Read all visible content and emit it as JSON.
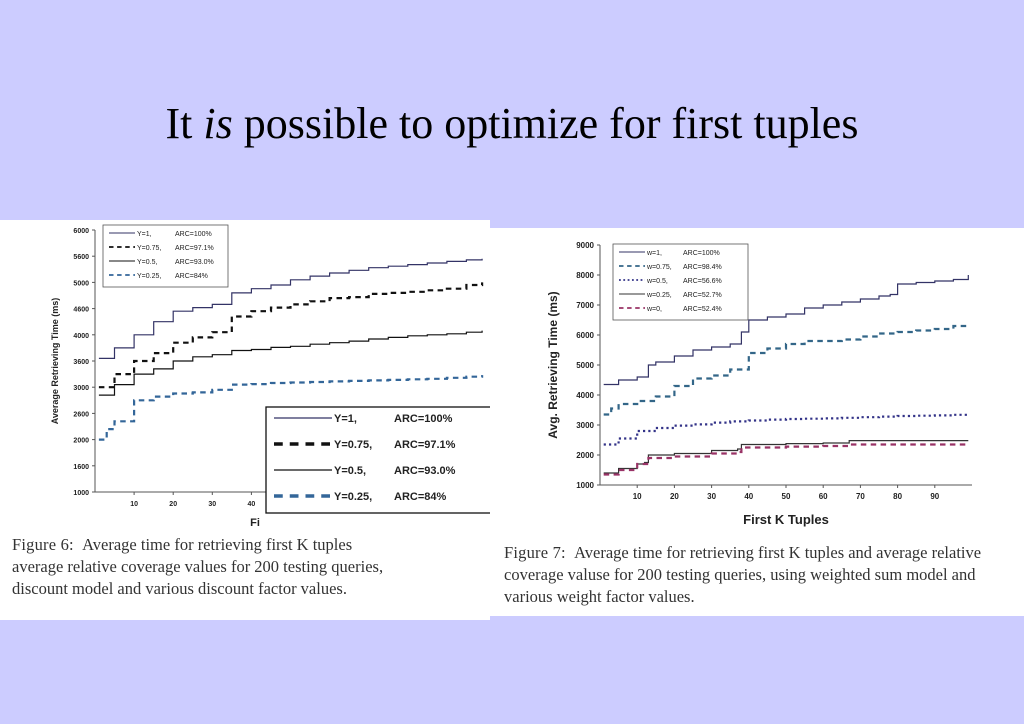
{
  "slide": {
    "title_pre": "It",
    "title_em": "is",
    "title_post": "possible to optimize for first tuples"
  },
  "chart_data": [
    {
      "type": "line",
      "ylabel": "Average Retrieving Time (ms)",
      "xlabel": "Fi",
      "xlim": [
        0,
        100
      ],
      "ylim": [
        1000,
        6000
      ],
      "x_ticks": [
        "10",
        "20",
        "30",
        "40"
      ],
      "y_ticks": [
        "1000",
        "1600",
        "2000",
        "2600",
        "3000",
        "3600",
        "4000",
        "4600",
        "5000",
        "5600",
        "6000"
      ],
      "series": [
        {
          "name": "Y=1,",
          "arc": "ARC=100%",
          "color": "#333366",
          "dash": "solid",
          "x": [
            1,
            5,
            10,
            15,
            20,
            25,
            30,
            35,
            40,
            45,
            50,
            55,
            60,
            65,
            70,
            75,
            80,
            85,
            90,
            95,
            99
          ],
          "y": [
            3550,
            3750,
            4000,
            4250,
            4450,
            4520,
            4580,
            4800,
            4880,
            4950,
            5050,
            5120,
            5180,
            5230,
            5280,
            5310,
            5340,
            5370,
            5400,
            5430,
            5450
          ]
        },
        {
          "name": "Y=0.75,",
          "arc": "ARC=97.1%",
          "color": "#111111",
          "dash": "dashed",
          "x": [
            1,
            5,
            10,
            15,
            20,
            25,
            30,
            35,
            40,
            45,
            50,
            55,
            60,
            65,
            70,
            75,
            80,
            85,
            90,
            95,
            99
          ],
          "y": [
            3000,
            3250,
            3500,
            3650,
            3850,
            3950,
            4050,
            4350,
            4450,
            4520,
            4580,
            4640,
            4700,
            4720,
            4780,
            4800,
            4820,
            4850,
            4880,
            4950,
            5000
          ]
        },
        {
          "name": "Y=0.5,",
          "arc": "ARC=93.0%",
          "color": "#111111",
          "dash": "solid",
          "x": [
            1,
            5,
            10,
            15,
            20,
            25,
            30,
            35,
            40,
            45,
            50,
            55,
            60,
            65,
            70,
            75,
            80,
            85,
            90,
            95,
            99
          ],
          "y": [
            2850,
            3050,
            3250,
            3350,
            3500,
            3580,
            3620,
            3700,
            3720,
            3760,
            3780,
            3820,
            3850,
            3880,
            3920,
            3950,
            3980,
            4000,
            4020,
            4050,
            4080
          ]
        },
        {
          "name": "Y=0.25,",
          "arc": "ARC=84%",
          "color": "#336699",
          "dash": "dashed",
          "x": [
            1,
            3,
            5,
            10,
            15,
            20,
            25,
            30,
            35,
            40,
            45,
            50,
            55,
            60,
            65,
            70,
            75,
            80,
            85,
            90,
            95,
            99
          ],
          "y": [
            2000,
            2200,
            2350,
            2750,
            2820,
            2880,
            2900,
            2950,
            3050,
            3060,
            3080,
            3090,
            3100,
            3110,
            3120,
            3130,
            3140,
            3150,
            3160,
            3180,
            3200,
            3230
          ]
        }
      ],
      "inset_legend": [
        {
          "name": "Y=1,",
          "arc": "ARC=100%"
        },
        {
          "name": "Y=0.75,",
          "arc": "ARC=97.1%"
        },
        {
          "name": "Y=0.5,",
          "arc": "ARC=93.0%"
        },
        {
          "name": "Y=0.25,",
          "arc": "ARC=84%"
        }
      ],
      "caption": {
        "label": "Figure 6:",
        "text": "Average time for retrieving first K tuples",
        "line2": "average relative coverage values for 200 testing queries,",
        "line3": "discount model and various discount factor values."
      }
    },
    {
      "type": "line",
      "ylabel": "Avg. Retrieving Time (ms)",
      "xlabel": "First K Tuples",
      "xlim": [
        0,
        100
      ],
      "ylim": [
        1000,
        9000
      ],
      "x_ticks": [
        "10",
        "20",
        "30",
        "40",
        "50",
        "60",
        "70",
        "80",
        "90"
      ],
      "y_ticks": [
        "1000",
        "2000",
        "3000",
        "4000",
        "5000",
        "6000",
        "7000",
        "8000",
        "9000"
      ],
      "series": [
        {
          "name": "w=1,",
          "arc": "ARC=100%",
          "color": "#333366",
          "dash": "solid",
          "x": [
            1,
            5,
            10,
            13,
            15,
            20,
            25,
            30,
            35,
            38,
            40,
            45,
            50,
            55,
            60,
            65,
            70,
            75,
            78,
            80,
            85,
            90,
            95,
            99
          ],
          "y": [
            4350,
            4500,
            4600,
            5000,
            5100,
            5300,
            5500,
            5600,
            5700,
            6100,
            6500,
            6600,
            6700,
            6900,
            7000,
            7100,
            7200,
            7300,
            7350,
            7700,
            7750,
            7800,
            7850,
            8000
          ]
        },
        {
          "name": "w=0.75,",
          "arc": "ARC=98.4%",
          "color": "#336688",
          "dash": "dashed",
          "x": [
            1,
            3,
            5,
            10,
            15,
            20,
            25,
            30,
            35,
            40,
            45,
            50,
            55,
            60,
            65,
            70,
            75,
            80,
            85,
            90,
            95,
            99
          ],
          "y": [
            3350,
            3550,
            3700,
            3800,
            3950,
            4300,
            4550,
            4650,
            4850,
            5400,
            5550,
            5700,
            5800,
            5800,
            5850,
            5950,
            6050,
            6100,
            6150,
            6200,
            6300,
            6300
          ]
        },
        {
          "name": "w=0.5,",
          "arc": "ARC=56.6%",
          "color": "#333388",
          "dash": "dotted",
          "x": [
            1,
            5,
            10,
            15,
            20,
            25,
            30,
            35,
            40,
            45,
            50,
            55,
            60,
            65,
            70,
            75,
            80,
            85,
            90,
            95,
            99
          ],
          "y": [
            2350,
            2550,
            2800,
            2900,
            2980,
            3020,
            3080,
            3120,
            3150,
            3180,
            3200,
            3210,
            3220,
            3240,
            3260,
            3280,
            3300,
            3310,
            3320,
            3340,
            3350
          ]
        },
        {
          "name": "w=0.25,",
          "arc": "ARC=52.7%",
          "color": "#333333",
          "dash": "solid",
          "x": [
            1,
            5,
            10,
            12,
            13,
            20,
            30,
            37,
            38,
            40,
            50,
            60,
            66,
            67,
            70,
            80,
            90,
            99
          ],
          "y": [
            1400,
            1550,
            1700,
            1750,
            2000,
            2050,
            2150,
            2200,
            2350,
            2350,
            2380,
            2400,
            2400,
            2480,
            2480,
            2480,
            2480,
            2480
          ]
        },
        {
          "name": "w=0,",
          "arc": "ARC=52.4%",
          "color": "#993366",
          "dash": "dashed",
          "x": [
            1,
            5,
            10,
            13,
            20,
            30,
            37,
            38,
            40,
            50,
            60,
            66,
            67,
            70,
            80,
            90,
            99
          ],
          "y": [
            1350,
            1500,
            1700,
            1900,
            1950,
            2050,
            2100,
            2250,
            2250,
            2280,
            2300,
            2300,
            2350,
            2350,
            2350,
            2350,
            2350
          ]
        }
      ],
      "caption": {
        "label": "Figure 7:",
        "text": "Average time for retrieving first K tuples and average relative coverage valuse for 200 testing queries, using weighted sum model and various weight factor values."
      }
    }
  ]
}
